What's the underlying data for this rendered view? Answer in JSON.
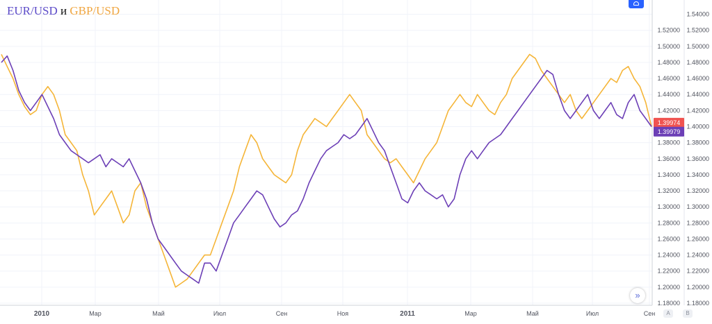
{
  "title": {
    "series1": "EUR/USD",
    "separator": "и",
    "series2": "GBP/USD"
  },
  "scroll_button": "»",
  "axis_buttons": {
    "auto": "A",
    "log": "B"
  },
  "chart_data": {
    "type": "line",
    "grid": true,
    "legend": "top-left",
    "ylim": [
      1.18,
      1.55
    ],
    "y_ticks_left": [
      "1.18000",
      "1.20000",
      "1.22000",
      "1.24000",
      "1.26000",
      "1.28000",
      "1.30000",
      "1.32000",
      "1.34000",
      "1.36000",
      "1.38000",
      "1.40000",
      "1.42000",
      "1.44000",
      "1.46000",
      "1.48000",
      "1.50000",
      "1.52000"
    ],
    "y_ticks_right": [
      "1.18000",
      "1.20000",
      "1.22000",
      "1.24000",
      "1.26000",
      "1.28000",
      "1.30000",
      "1.32000",
      "1.34000",
      "1.36000",
      "1.38000",
      "1.40000",
      "1.42000",
      "1.44000",
      "1.46000",
      "1.48000",
      "1.50000",
      "1.52000",
      "1.54000"
    ],
    "x_ticks": [
      "2010",
      "Мар",
      "Май",
      "Июл",
      "Сен",
      "Ноя",
      "2011",
      "Мар",
      "Май",
      "Июл",
      "Сен"
    ],
    "last_value_labels": [
      {
        "text": "1.39974",
        "color": "#f05350",
        "value": 1.39974
      },
      {
        "text": "1.39979",
        "color": "#6c3fb6",
        "value": 1.39979
      }
    ],
    "series": [
      {
        "name": "EUR/USD",
        "color": "#6c3fb6",
        "values": [
          1.48,
          1.488,
          1.47,
          1.445,
          1.43,
          1.42,
          1.43,
          1.44,
          1.425,
          1.41,
          1.39,
          1.38,
          1.37,
          1.365,
          1.36,
          1.355,
          1.36,
          1.365,
          1.35,
          1.36,
          1.355,
          1.35,
          1.36,
          1.345,
          1.33,
          1.31,
          1.28,
          1.26,
          1.25,
          1.24,
          1.23,
          1.22,
          1.215,
          1.21,
          1.205,
          1.23,
          1.23,
          1.22,
          1.24,
          1.26,
          1.28,
          1.29,
          1.3,
          1.31,
          1.32,
          1.315,
          1.3,
          1.285,
          1.275,
          1.28,
          1.29,
          1.295,
          1.31,
          1.33,
          1.345,
          1.36,
          1.37,
          1.375,
          1.38,
          1.39,
          1.385,
          1.39,
          1.4,
          1.41,
          1.395,
          1.38,
          1.37,
          1.35,
          1.33,
          1.31,
          1.305,
          1.32,
          1.33,
          1.32,
          1.315,
          1.31,
          1.315,
          1.3,
          1.31,
          1.34,
          1.36,
          1.37,
          1.36,
          1.37,
          1.38,
          1.385,
          1.39,
          1.4,
          1.41,
          1.42,
          1.43,
          1.44,
          1.45,
          1.46,
          1.47,
          1.465,
          1.44,
          1.42,
          1.41,
          1.42,
          1.43,
          1.44,
          1.42,
          1.41,
          1.42,
          1.43,
          1.415,
          1.41,
          1.43,
          1.44,
          1.42,
          1.41,
          1.4
        ]
      },
      {
        "name": "GBP/USD",
        "color": "#f5b538",
        "values": [
          1.49,
          1.475,
          1.46,
          1.44,
          1.425,
          1.415,
          1.42,
          1.44,
          1.45,
          1.44,
          1.42,
          1.39,
          1.38,
          1.37,
          1.34,
          1.32,
          1.29,
          1.3,
          1.31,
          1.32,
          1.3,
          1.28,
          1.29,
          1.32,
          1.33,
          1.3,
          1.28,
          1.26,
          1.24,
          1.22,
          1.2,
          1.205,
          1.21,
          1.22,
          1.23,
          1.24,
          1.24,
          1.26,
          1.28,
          1.3,
          1.32,
          1.35,
          1.37,
          1.39,
          1.38,
          1.36,
          1.35,
          1.34,
          1.335,
          1.33,
          1.34,
          1.37,
          1.39,
          1.4,
          1.41,
          1.405,
          1.4,
          1.41,
          1.42,
          1.43,
          1.44,
          1.43,
          1.42,
          1.39,
          1.38,
          1.37,
          1.36,
          1.355,
          1.36,
          1.35,
          1.34,
          1.33,
          1.345,
          1.36,
          1.37,
          1.38,
          1.4,
          1.42,
          1.43,
          1.44,
          1.43,
          1.425,
          1.44,
          1.43,
          1.42,
          1.415,
          1.43,
          1.44,
          1.46,
          1.47,
          1.48,
          1.49,
          1.485,
          1.47,
          1.46,
          1.45,
          1.44,
          1.43,
          1.44,
          1.42,
          1.41,
          1.42,
          1.43,
          1.44,
          1.45,
          1.46,
          1.455,
          1.47,
          1.475,
          1.46,
          1.45,
          1.43,
          1.4
        ]
      }
    ]
  }
}
